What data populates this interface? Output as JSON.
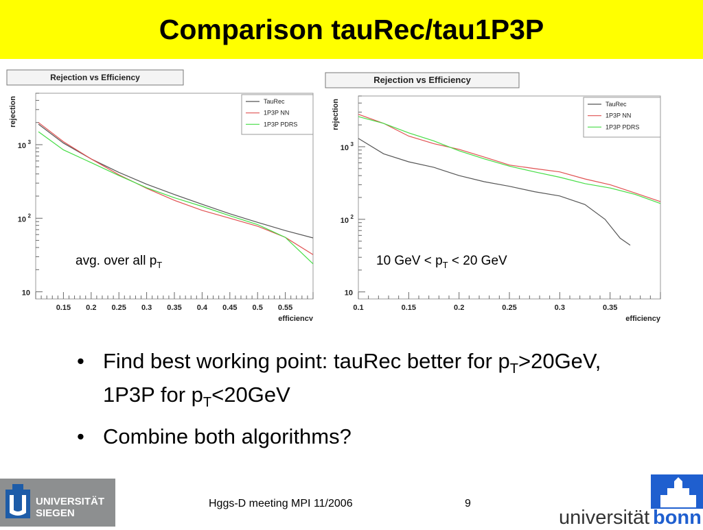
{
  "slide": {
    "title": "Comparison tauRec/tau1P3P",
    "caption_left": {
      "text": "avg. over all p",
      "sub": "T"
    },
    "caption_right": {
      "text": "10 GeV < p",
      "sub": "T",
      "text2": " < 20 GeV"
    },
    "bullets": [
      {
        "parts": [
          {
            "t": "Find best working point: tauRec better for p"
          },
          {
            "sub": "T"
          },
          {
            "t": ">20GeV, 1P3P for p"
          },
          {
            "sub": "T"
          },
          {
            "t": "<20GeV"
          }
        ]
      },
      {
        "parts": [
          {
            "t": "Combine both algorithms?"
          }
        ]
      }
    ],
    "footer": {
      "meeting": "Hggs-D meeting MPI 11/2006",
      "page": "9"
    },
    "logos": {
      "siegen_line1": "UNIVERSITÄT",
      "siegen_line2": "SIEGEN",
      "bonn_part1": "universität",
      "bonn_part2": "bonn"
    }
  },
  "colors": {
    "title_bg": "#ffff00",
    "taurec": "#555555",
    "nn": "#e05050",
    "pdrs": "#44dd44",
    "bonn_blue": "#1f5fcf",
    "siegen_gray": "#8d8f90",
    "siegen_blue": "#1d5ca8"
  },
  "chart_data": [
    {
      "type": "line",
      "title": "Rejection vs Efficiency",
      "xlabel": "efficiency",
      "ylabel": "rejection",
      "log_y": true,
      "xlim": [
        0.1,
        0.6
      ],
      "ylim": [
        8,
        5000
      ],
      "x_ticks": [
        "0.15",
        "0.2",
        "0.25",
        "0.3",
        "0.35",
        "0.4",
        "0.45",
        "0.5",
        "0.55"
      ],
      "y_ticks": [
        "10",
        "10²",
        "10³"
      ],
      "legend": [
        "TauRec",
        "1P3P NN",
        "1P3P PDRS"
      ],
      "legend_position": "top-right",
      "series": [
        {
          "name": "TauRec",
          "color": "#555555",
          "x": [
            0.105,
            0.15,
            0.2,
            0.25,
            0.3,
            0.35,
            0.4,
            0.45,
            0.5,
            0.55,
            0.6
          ],
          "y": [
            1900,
            1050,
            640,
            420,
            290,
            210,
            155,
            115,
            88,
            68,
            54
          ]
        },
        {
          "name": "1P3P NN",
          "color": "#e05050",
          "x": [
            0.105,
            0.15,
            0.2,
            0.25,
            0.3,
            0.35,
            0.4,
            0.45,
            0.5,
            0.55,
            0.6
          ],
          "y": [
            2000,
            1100,
            640,
            390,
            255,
            175,
            128,
            100,
            78,
            55,
            32
          ]
        },
        {
          "name": "1P3P PDRS",
          "color": "#44dd44",
          "x": [
            0.105,
            0.15,
            0.2,
            0.25,
            0.3,
            0.35,
            0.4,
            0.45,
            0.5,
            0.55,
            0.6
          ],
          "y": [
            1500,
            850,
            570,
            380,
            260,
            190,
            145,
            108,
            82,
            55,
            24
          ]
        }
      ]
    },
    {
      "type": "line",
      "title": "Rejection vs Efficiency",
      "xlabel": "efficiency",
      "ylabel": "rejection",
      "log_y": true,
      "xlim": [
        0.1,
        0.4
      ],
      "ylim": [
        8,
        5000
      ],
      "x_ticks": [
        "0.1",
        "0.15",
        "0.2",
        "0.25",
        "0.3",
        "0.35"
      ],
      "y_ticks": [
        "10",
        "10²",
        "10³"
      ],
      "legend": [
        "TauRec",
        "1P3P NN",
        "1P3P PDRS"
      ],
      "legend_position": "top-right",
      "series": [
        {
          "name": "TauRec",
          "color": "#555555",
          "x": [
            0.1,
            0.125,
            0.15,
            0.175,
            0.2,
            0.225,
            0.25,
            0.275,
            0.3,
            0.325,
            0.345,
            0.36,
            0.37
          ],
          "y": [
            1300,
            800,
            620,
            520,
            400,
            330,
            285,
            240,
            210,
            160,
            100,
            55,
            44
          ]
        },
        {
          "name": "1P3P NN",
          "color": "#e05050",
          "x": [
            0.1,
            0.125,
            0.15,
            0.175,
            0.2,
            0.225,
            0.25,
            0.275,
            0.3,
            0.325,
            0.35,
            0.375,
            0.4
          ],
          "y": [
            2800,
            2100,
            1400,
            1100,
            920,
            720,
            560,
            500,
            450,
            360,
            300,
            230,
            175
          ]
        },
        {
          "name": "1P3P PDRS",
          "color": "#44dd44",
          "x": [
            0.1,
            0.125,
            0.15,
            0.175,
            0.2,
            0.225,
            0.25,
            0.275,
            0.3,
            0.325,
            0.35,
            0.375,
            0.4
          ],
          "y": [
            2600,
            2100,
            1550,
            1200,
            880,
            680,
            540,
            450,
            380,
            310,
            270,
            220,
            165
          ]
        }
      ]
    }
  ]
}
